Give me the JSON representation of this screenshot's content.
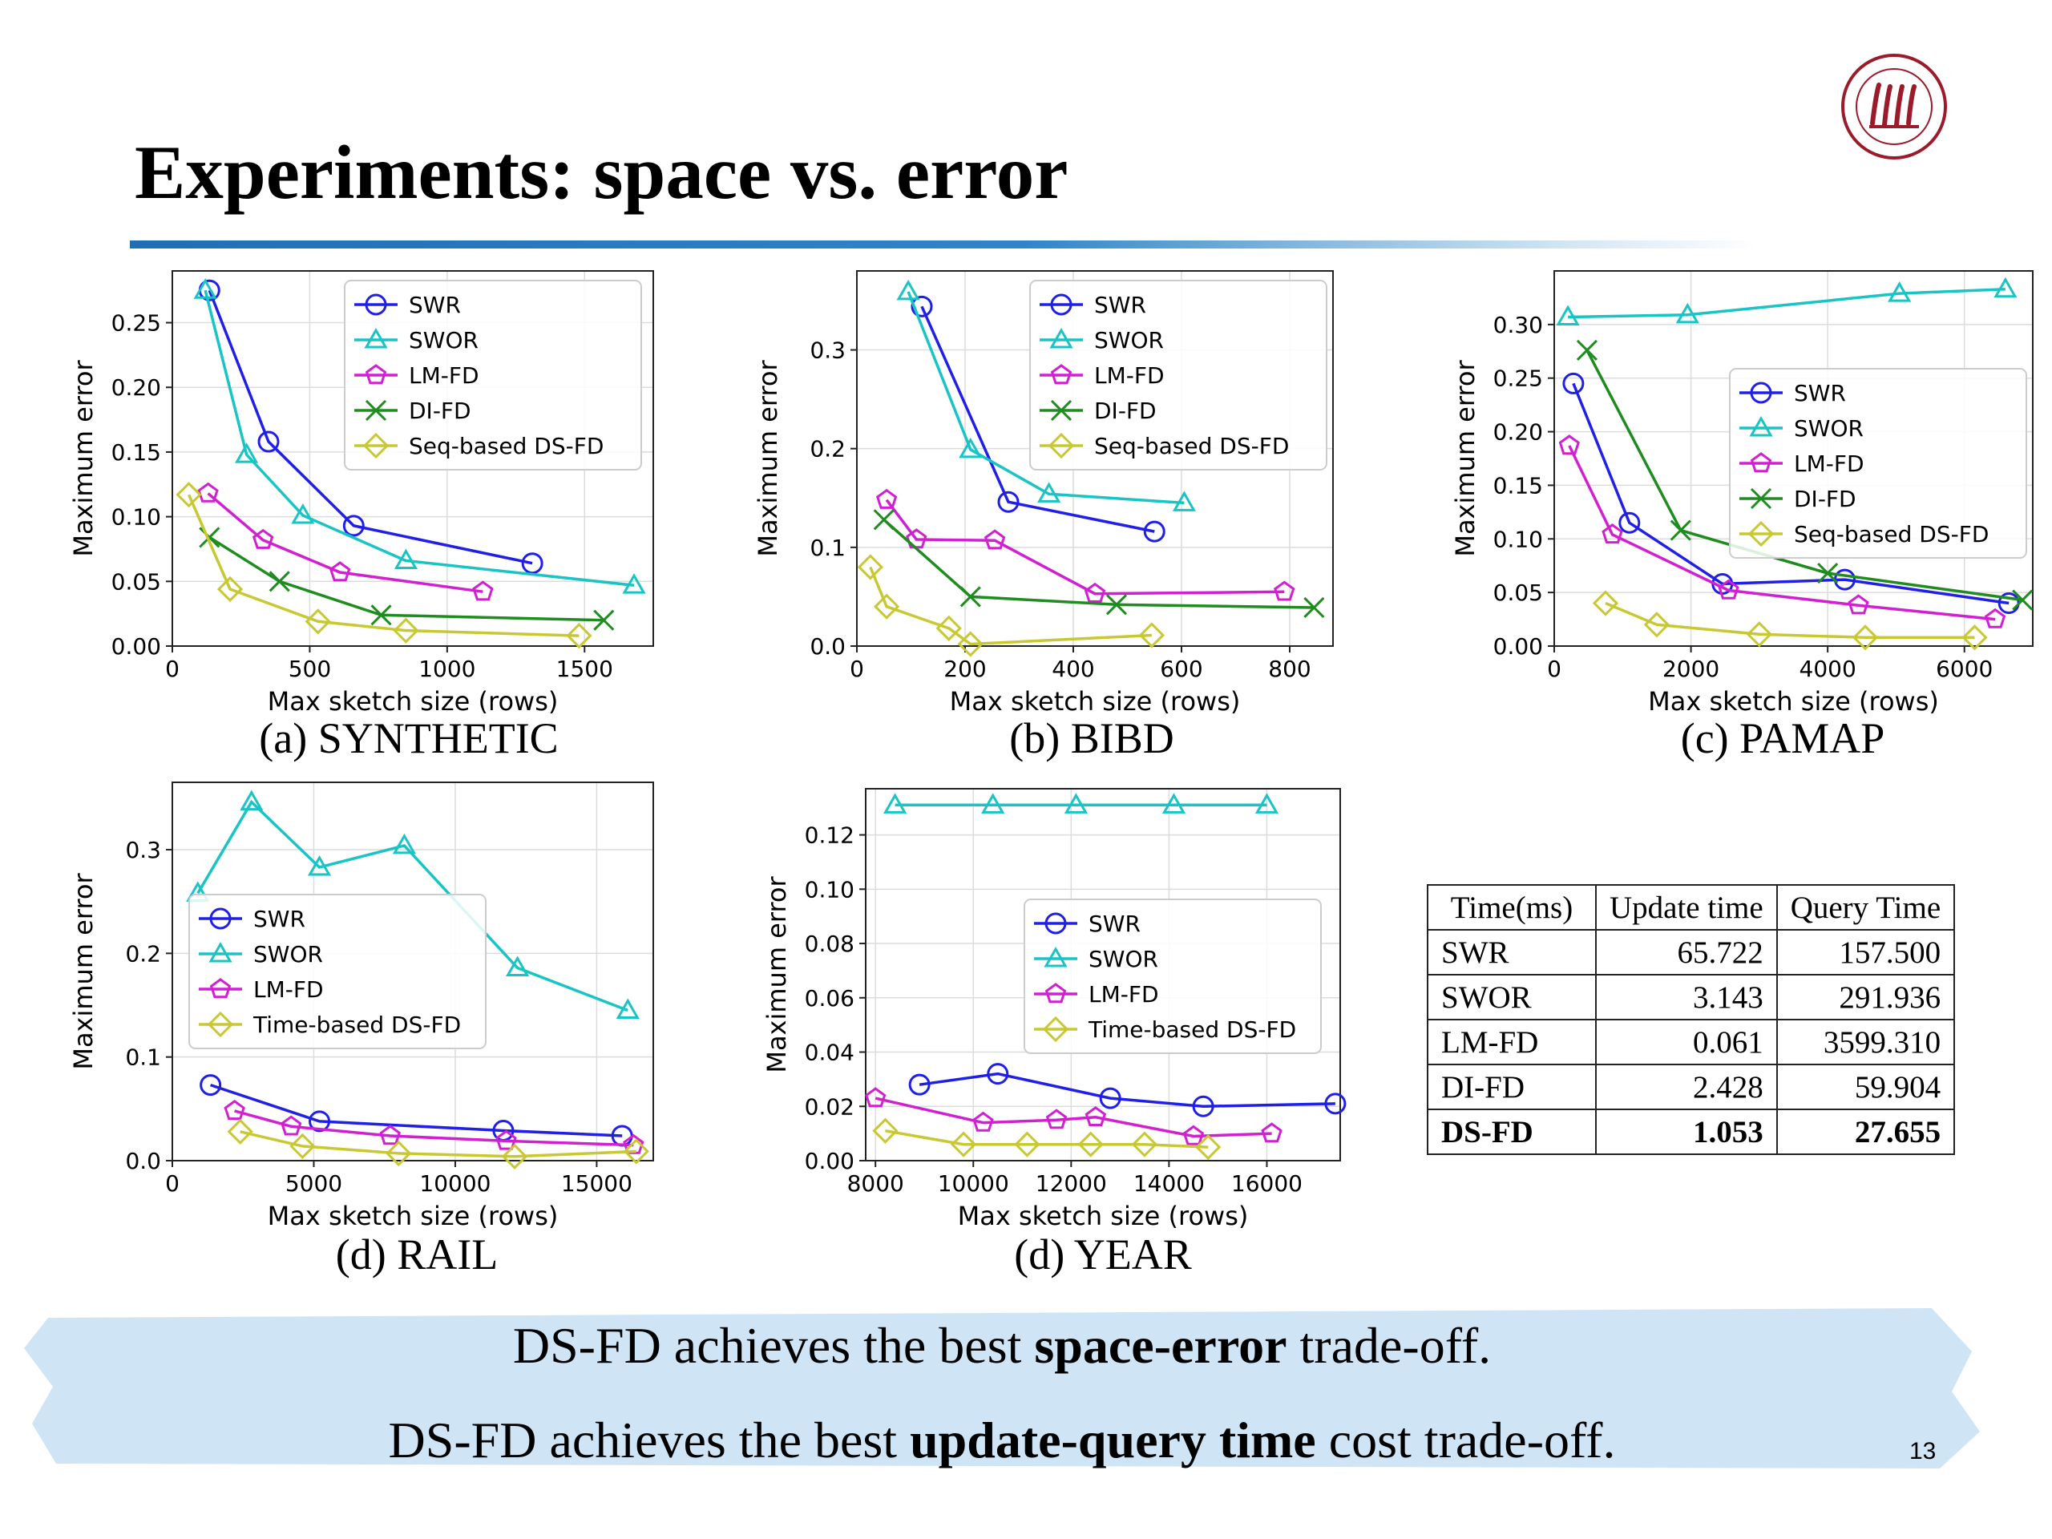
{
  "slide": {
    "title": "Experiments: space vs. error",
    "page_number": "13",
    "accent_color": "#1f6fb5"
  },
  "chart_data": [
    {
      "id": "a",
      "type": "line",
      "caption": "(a) SYNTHETIC",
      "xlabel": "Max sketch size (rows)",
      "ylabel": "Maximum error",
      "xlim": [
        0,
        1750
      ],
      "ylim": [
        0,
        0.29
      ],
      "xticks": [
        0,
        500,
        1000,
        1500
      ],
      "xtick_labels": [
        "0",
        "500",
        "1000",
        "1500"
      ],
      "yticks": [
        0,
        0.05,
        0.1,
        0.15,
        0.2,
        0.25
      ],
      "ytick_labels": [
        "0.00",
        "0.05",
        "0.10",
        "0.15",
        "0.20",
        "0.25"
      ],
      "legend": "top-right",
      "series": [
        {
          "name": "SWR",
          "color": "#1f1fe8",
          "marker": "circle",
          "x": [
            135,
            350,
            660,
            1310
          ],
          "y": [
            0.275,
            0.158,
            0.093,
            0.064
          ]
        },
        {
          "name": "SWOR",
          "color": "#19c4c4",
          "marker": "triangle",
          "x": [
            120,
            270,
            475,
            850,
            1680
          ],
          "y": [
            0.275,
            0.148,
            0.101,
            0.066,
            0.047
          ]
        },
        {
          "name": "LM-FD",
          "color": "#d21fd2",
          "marker": "pentagon",
          "x": [
            130,
            330,
            610,
            1130
          ],
          "y": [
            0.118,
            0.082,
            0.057,
            0.042
          ]
        },
        {
          "name": "DI-FD",
          "color": "#1e8c1e",
          "marker": "x",
          "x": [
            135,
            390,
            760,
            1570
          ],
          "y": [
            0.084,
            0.05,
            0.024,
            0.02
          ]
        },
        {
          "name": "Seq-based DS-FD",
          "color": "#c8c832",
          "marker": "diamond",
          "x": [
            60,
            210,
            530,
            850,
            1480
          ],
          "y": [
            0.117,
            0.044,
            0.019,
            0.012,
            0.008
          ]
        }
      ]
    },
    {
      "id": "b",
      "type": "line",
      "caption": "(b) BIBD",
      "xlabel": "Max sketch size (rows)",
      "ylabel": "Maximum error",
      "xlim": [
        0,
        880
      ],
      "ylim": [
        0,
        0.38
      ],
      "xticks": [
        0,
        200,
        400,
        600,
        800
      ],
      "xtick_labels": [
        "0",
        "200",
        "400",
        "600",
        "800"
      ],
      "yticks": [
        0,
        0.1,
        0.2,
        0.3
      ],
      "ytick_labels": [
        "0.0",
        "0.1",
        "0.2",
        "0.3"
      ],
      "legend": "top-right",
      "series": [
        {
          "name": "SWR",
          "color": "#1f1fe8",
          "marker": "circle",
          "x": [
            120,
            280,
            550
          ],
          "y": [
            0.344,
            0.146,
            0.116
          ]
        },
        {
          "name": "SWOR",
          "color": "#19c4c4",
          "marker": "triangle",
          "x": [
            95,
            210,
            355,
            605
          ],
          "y": [
            0.359,
            0.199,
            0.154,
            0.145
          ]
        },
        {
          "name": "LM-FD",
          "color": "#d21fd2",
          "marker": "pentagon",
          "x": [
            55,
            110,
            255,
            440,
            790
          ],
          "y": [
            0.148,
            0.108,
            0.107,
            0.053,
            0.055
          ]
        },
        {
          "name": "DI-FD",
          "color": "#1e8c1e",
          "marker": "x",
          "x": [
            50,
            210,
            480,
            845
          ],
          "y": [
            0.128,
            0.05,
            0.042,
            0.039
          ]
        },
        {
          "name": "Seq-based DS-FD",
          "color": "#c8c832",
          "marker": "diamond",
          "x": [
            25,
            55,
            170,
            210,
            545
          ],
          "y": [
            0.08,
            0.04,
            0.018,
            0.002,
            0.011
          ]
        }
      ]
    },
    {
      "id": "c",
      "type": "line",
      "caption": "(c) PAMAP",
      "xlabel": "Max sketch size (rows)",
      "ylabel": "Maximum error",
      "xlim": [
        0,
        7000
      ],
      "ylim": [
        0,
        0.35
      ],
      "xticks": [
        0,
        2000,
        4000,
        6000
      ],
      "xtick_labels": [
        "0",
        "2000",
        "4000",
        "6000"
      ],
      "yticks": [
        0,
        0.05,
        0.1,
        0.15,
        0.2,
        0.25,
        0.3
      ],
      "ytick_labels": [
        "0.00",
        "0.05",
        "0.10",
        "0.15",
        "0.20",
        "0.25",
        "0.30"
      ],
      "legend": "center-right",
      "series": [
        {
          "name": "SWR",
          "color": "#1f1fe8",
          "marker": "circle",
          "x": [
            280,
            1100,
            2460,
            4250,
            6650
          ],
          "y": [
            0.245,
            0.115,
            0.058,
            0.062,
            0.04
          ]
        },
        {
          "name": "SWOR",
          "color": "#19c4c4",
          "marker": "triangle",
          "x": [
            200,
            1950,
            5050,
            6600
          ],
          "y": [
            0.307,
            0.309,
            0.329,
            0.333
          ]
        },
        {
          "name": "LM-FD",
          "color": "#d21fd2",
          "marker": "pentagon",
          "x": [
            220,
            850,
            2550,
            4450,
            6450
          ],
          "y": [
            0.187,
            0.104,
            0.052,
            0.038,
            0.025
          ]
        },
        {
          "name": "DI-FD",
          "color": "#1e8c1e",
          "marker": "x",
          "x": [
            480,
            1850,
            4000,
            6850
          ],
          "y": [
            0.276,
            0.108,
            0.068,
            0.043
          ]
        },
        {
          "name": "Seq-based DS-FD",
          "color": "#c8c832",
          "marker": "diamond",
          "x": [
            750,
            1500,
            3000,
            4550,
            6150
          ],
          "y": [
            0.04,
            0.02,
            0.011,
            0.008,
            0.008
          ]
        }
      ]
    },
    {
      "id": "d",
      "type": "line",
      "caption": "(d) RAIL",
      "xlabel": "Max sketch size (rows)",
      "ylabel": "Maximum error",
      "xlim": [
        0,
        17000
      ],
      "ylim": [
        0,
        0.365
      ],
      "xticks": [
        0,
        5000,
        10000,
        15000
      ],
      "xtick_labels": [
        "0",
        "5000",
        "10000",
        "15000"
      ],
      "yticks": [
        0,
        0.1,
        0.2,
        0.3
      ],
      "ytick_labels": [
        "0.0",
        "0.1",
        "0.2",
        "0.3"
      ],
      "legend": "center-left",
      "series": [
        {
          "name": "SWR",
          "color": "#1f1fe8",
          "marker": "circle",
          "x": [
            1350,
            5200,
            11700,
            15900
          ],
          "y": [
            0.073,
            0.038,
            0.029,
            0.024
          ]
        },
        {
          "name": "SWOR",
          "color": "#19c4c4",
          "marker": "triangle",
          "x": [
            900,
            2800,
            5200,
            8200,
            12200,
            16100
          ],
          "y": [
            0.258,
            0.346,
            0.283,
            0.304,
            0.186,
            0.145
          ]
        },
        {
          "name": "LM-FD",
          "color": "#d21fd2",
          "marker": "pentagon",
          "x": [
            2200,
            4200,
            7700,
            11800,
            16300
          ],
          "y": [
            0.048,
            0.033,
            0.024,
            0.019,
            0.015
          ]
        },
        {
          "name": "Time-based DS-FD",
          "color": "#c8c832",
          "marker": "diamond",
          "x": [
            2400,
            4600,
            8000,
            12100,
            16400
          ],
          "y": [
            0.028,
            0.014,
            0.007,
            0.004,
            0.009
          ]
        }
      ]
    },
    {
      "id": "e",
      "type": "line",
      "caption": "(d) YEAR",
      "xlabel": "Max sketch size (rows)",
      "ylabel": "Maximum error",
      "xlim": [
        7800,
        17500
      ],
      "ylim": [
        0,
        0.137
      ],
      "xticks": [
        8000,
        10000,
        12000,
        14000,
        16000
      ],
      "xtick_labels": [
        "8000",
        "10000",
        "12000",
        "14000",
        "16000"
      ],
      "yticks": [
        0,
        0.02,
        0.04,
        0.06,
        0.08,
        0.1,
        0.12
      ],
      "ytick_labels": [
        "0.00",
        "0.02",
        "0.04",
        "0.06",
        "0.08",
        "0.10",
        "0.12"
      ],
      "legend": "center-right",
      "series": [
        {
          "name": "SWR",
          "color": "#1f1fe8",
          "marker": "circle",
          "x": [
            8900,
            10500,
            12800,
            14700,
            17400
          ],
          "y": [
            0.028,
            0.032,
            0.023,
            0.02,
            0.021
          ]
        },
        {
          "name": "SWOR",
          "color": "#19c4c4",
          "marker": "triangle",
          "x": [
            8400,
            10400,
            12100,
            14100,
            16000
          ],
          "y": [
            0.131,
            0.131,
            0.131,
            0.131,
            0.131
          ]
        },
        {
          "name": "LM-FD",
          "color": "#d21fd2",
          "marker": "pentagon",
          "x": [
            8000,
            10200,
            11700,
            12500,
            14500,
            16100
          ],
          "y": [
            0.023,
            0.014,
            0.015,
            0.016,
            0.009,
            0.01
          ]
        },
        {
          "name": "Time-based DS-FD",
          "color": "#c8c832",
          "marker": "diamond",
          "x": [
            8200,
            9800,
            11100,
            12400,
            13500,
            14800
          ],
          "y": [
            0.011,
            0.006,
            0.006,
            0.006,
            0.006,
            0.005
          ]
        }
      ]
    }
  ],
  "timing_table": {
    "headers": [
      "Time(ms)",
      "Update time",
      "Query Time"
    ],
    "rows": [
      [
        "SWR",
        "65.722",
        "157.500"
      ],
      [
        "SWOR",
        "3.143",
        "291.936"
      ],
      [
        "LM-FD",
        "0.061",
        "3599.310"
      ],
      [
        "DI-FD",
        "2.428",
        "59.904"
      ],
      [
        "DS-FD",
        "1.053",
        "27.655"
      ]
    ]
  },
  "conclusion": {
    "line1_pre": "DS-FD achieves the best ",
    "line1_bold": "space-error",
    "line1_post": " trade-off.",
    "line2_pre": "DS-FD achieves the best ",
    "line2_bold": "update-query time",
    "line2_post": " cost trade-off."
  }
}
